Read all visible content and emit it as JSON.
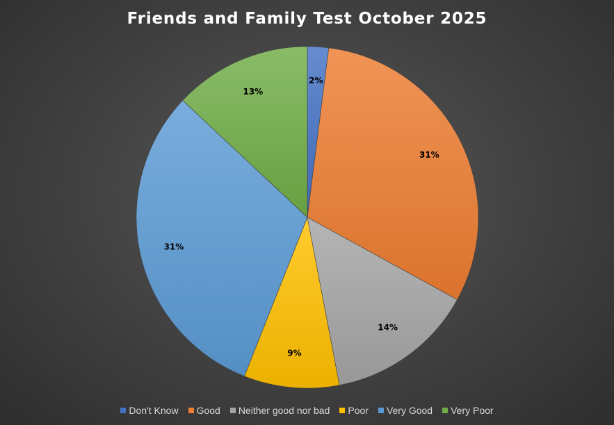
{
  "chart_data": {
    "type": "pie",
    "title": "Friends and Family Test October 2025",
    "categories": [
      "Don't Know",
      "Good",
      "Neither good nor bad",
      "Poor",
      "Very Good",
      "Very Poor"
    ],
    "values": [
      2,
      31,
      14,
      9,
      31,
      13
    ],
    "data_labels": [
      "2%",
      "31%",
      "14%",
      "9%",
      "31%",
      "13%"
    ],
    "colors": [
      "#4472C4",
      "#ED7D31",
      "#A5A5A5",
      "#FFC000",
      "#5B9BD5",
      "#70AD47"
    ],
    "start_angle_deg": 0,
    "direction": "clockwise",
    "legend_position": "bottom"
  }
}
